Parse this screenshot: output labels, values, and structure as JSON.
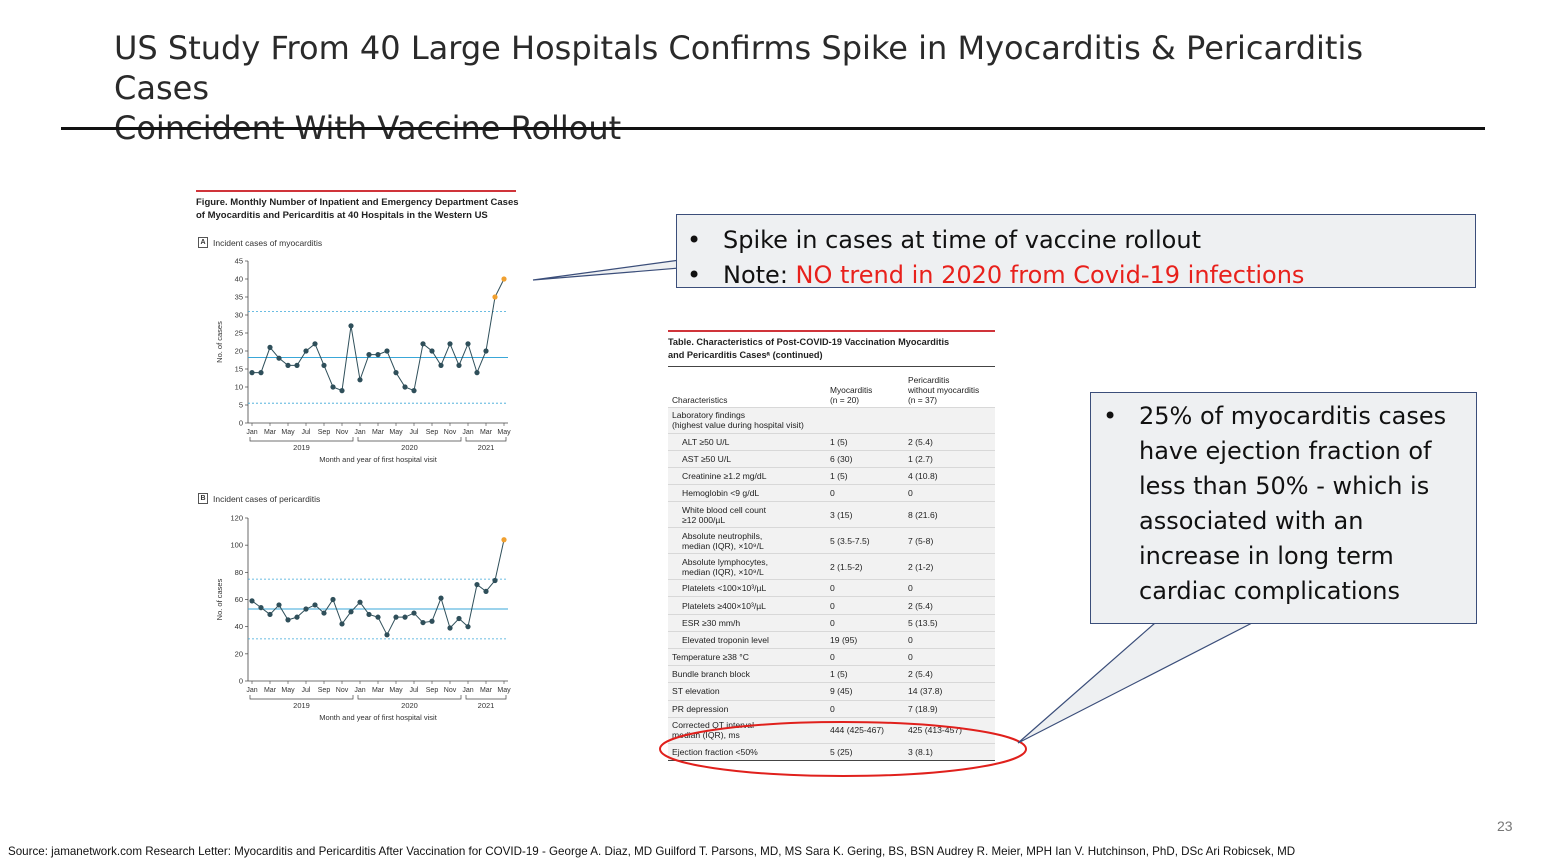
{
  "slide": {
    "title_line1": "US Study From 40 Large Hospitals Confirms Spike in Myocarditis & Pericarditis Cases",
    "title_line2": "Coincident With Vaccine Rollout",
    "page_number": "23",
    "source": "Source: jamanetwork.com   Research Letter: Myocarditis and Pericarditis After Vaccination for COVID-19 - George A. Diaz, MD Guilford T. Parsons, MD, MS Sara K. Gering, BS, BSN Audrey R. Meier, MPH Ian V. Hutchinson, PhD, DSc Ari Robicsek, MD"
  },
  "figure": {
    "title_line1": "Figure. Monthly Number of Inpatient and Emergency Department Cases",
    "title_line2": "of Myocarditis and Pericarditis at 40 Hospitals in the Western US",
    "month_labels": [
      "Jan",
      "Mar",
      "May",
      "Jul",
      "Sep",
      "Nov",
      "Jan",
      "Mar",
      "May",
      "Jul",
      "Sep",
      "Nov",
      "Jan",
      "Mar",
      "May"
    ],
    "year_labels": [
      "2019",
      "2020",
      "2021"
    ],
    "xlabel": "Month and year of first hospital visit"
  },
  "chart_data": [
    {
      "type": "line",
      "panel": "A",
      "title": "Incident cases of myocarditis",
      "ylabel": "No. of cases",
      "ylim": [
        0,
        45
      ],
      "yticks": [
        0,
        5,
        10,
        15,
        20,
        25,
        30,
        35,
        40,
        45
      ],
      "x": [
        "2019-01",
        "2019-02",
        "2019-03",
        "2019-04",
        "2019-05",
        "2019-06",
        "2019-07",
        "2019-08",
        "2019-09",
        "2019-10",
        "2019-11",
        "2019-12",
        "2020-01",
        "2020-02",
        "2020-03",
        "2020-04",
        "2020-05",
        "2020-06",
        "2020-07",
        "2020-08",
        "2020-09",
        "2020-10",
        "2020-11",
        "2020-12",
        "2021-01",
        "2021-02",
        "2021-03",
        "2021-04",
        "2021-05"
      ],
      "values": [
        14,
        14,
        21,
        18,
        16,
        16,
        20,
        22,
        16,
        10,
        9,
        27,
        12,
        19,
        19,
        20,
        14,
        10,
        9,
        22,
        20,
        16,
        22,
        16,
        22,
        14,
        20,
        35,
        40
      ],
      "highlight_months": [
        "2021-04",
        "2021-05"
      ],
      "reference_lines": {
        "center": 18.2,
        "upper": 31,
        "lower": 5.5
      },
      "series_color": "#2f4f5a",
      "highlight_color": "#f0a030",
      "center_line_color": "#3aa7d8"
    },
    {
      "type": "line",
      "panel": "B",
      "title": "Incident cases of pericarditis",
      "ylabel": "No. of cases",
      "ylim": [
        0,
        120
      ],
      "yticks": [
        0,
        20,
        40,
        60,
        80,
        100,
        120
      ],
      "x": [
        "2019-01",
        "2019-02",
        "2019-03",
        "2019-04",
        "2019-05",
        "2019-06",
        "2019-07",
        "2019-08",
        "2019-09",
        "2019-10",
        "2019-11",
        "2019-12",
        "2020-01",
        "2020-02",
        "2020-03",
        "2020-04",
        "2020-05",
        "2020-06",
        "2020-07",
        "2020-08",
        "2020-09",
        "2020-10",
        "2020-11",
        "2020-12",
        "2021-01",
        "2021-02",
        "2021-03",
        "2021-04",
        "2021-05"
      ],
      "values": [
        59,
        54,
        49,
        56,
        45,
        47,
        53,
        56,
        50,
        60,
        42,
        51,
        58,
        49,
        47,
        34,
        47,
        47,
        50,
        43,
        44,
        61,
        39,
        46,
        40,
        71,
        66,
        74,
        104
      ],
      "highlight_months": [
        "2021-05"
      ],
      "reference_lines": {
        "center": 53,
        "upper": 75,
        "lower": 31
      },
      "series_color": "#2f4f5a",
      "highlight_color": "#f0a030",
      "center_line_color": "#3aa7d8"
    }
  ],
  "callout1": {
    "bullet1": "Spike in cases at time of vaccine rollout",
    "bullet2_prefix": "Note: ",
    "bullet2_highlight": "NO trend in 2020 from Covid-19 infections",
    "highlight_color": "#e8211c"
  },
  "table": {
    "title_line1": "Table. Characteristics of Post-COVID-19 Vaccination Myocarditis",
    "title_line2": "and Pericarditis Casesᵃ (continued)",
    "headers": {
      "c1": "Characteristics",
      "c2_line1": "Myocarditis",
      "c2_line2": "(n = 20)",
      "c3_line1": "Pericarditis",
      "c3_line2": "without myocarditis",
      "c3_line3": "(n = 37)"
    },
    "rows": [
      {
        "label": "Laboratory findings",
        "label2": "(highest value during hospital visit)",
        "v1": "",
        "v2": "",
        "indent": false
      },
      {
        "label": "ALT ≥50 U/L",
        "v1": "1 (5)",
        "v2": "2 (5.4)",
        "indent": true
      },
      {
        "label": "AST ≥50 U/L",
        "v1": "6 (30)",
        "v2": "1 (2.7)",
        "indent": true
      },
      {
        "label": "Creatinine ≥1.2 mg/dL",
        "v1": "1 (5)",
        "v2": "4 (10.8)",
        "indent": true
      },
      {
        "label": "Hemoglobin <9 g/dL",
        "v1": "0",
        "v2": "0",
        "indent": true
      },
      {
        "label": "White blood cell count",
        "label2": "≥12 000/µL",
        "v1": "3 (15)",
        "v2": "8 (21.6)",
        "indent": true
      },
      {
        "label": "Absolute neutrophils,",
        "label2": "median (IQR), ×10⁹/L",
        "v1": "5 (3.5-7.5)",
        "v2": "7 (5-8)",
        "indent": true
      },
      {
        "label": "Absolute lymphocytes,",
        "label2": "median (IQR), ×10⁹/L",
        "v1": "2 (1.5-2)",
        "v2": "2 (1-2)",
        "indent": true
      },
      {
        "label": "Platelets <100×10³/µL",
        "v1": "0",
        "v2": "0",
        "indent": true
      },
      {
        "label": "Platelets ≥400×10³/µL",
        "v1": "0",
        "v2": "2 (5.4)",
        "indent": true
      },
      {
        "label": "ESR ≥30 mm/h",
        "v1": "0",
        "v2": "5 (13.5)",
        "indent": true
      },
      {
        "label": "Elevated troponin level",
        "v1": "19 (95)",
        "v2": "0",
        "indent": true
      },
      {
        "label": "Temperature ≥38 °C",
        "v1": "0",
        "v2": "0",
        "indent": false
      },
      {
        "label": "Bundle branch block",
        "v1": "1 (5)",
        "v2": "2 (5.4)",
        "indent": false
      },
      {
        "label": "ST elevation",
        "v1": "9 (45)",
        "v2": "14 (37.8)",
        "indent": false
      },
      {
        "label": "PR depression",
        "v1": "0",
        "v2": "7 (18.9)",
        "indent": false
      },
      {
        "label": "Corrected QT interval",
        "label2": "median (IQR), ms",
        "v1": "444 (425-467)",
        "v2": "425 (413-457)",
        "indent": false
      },
      {
        "label": "Ejection fraction <50%",
        "v1": "5 (25)",
        "v2": "3 (8.1)",
        "indent": false
      }
    ],
    "highlight_ellipse_color": "#e0201c"
  },
  "callout2": {
    "bullet1": "25% of myocarditis cases have ejection fraction of less than 50% - which is associated with an increase in long term cardiac complications"
  }
}
